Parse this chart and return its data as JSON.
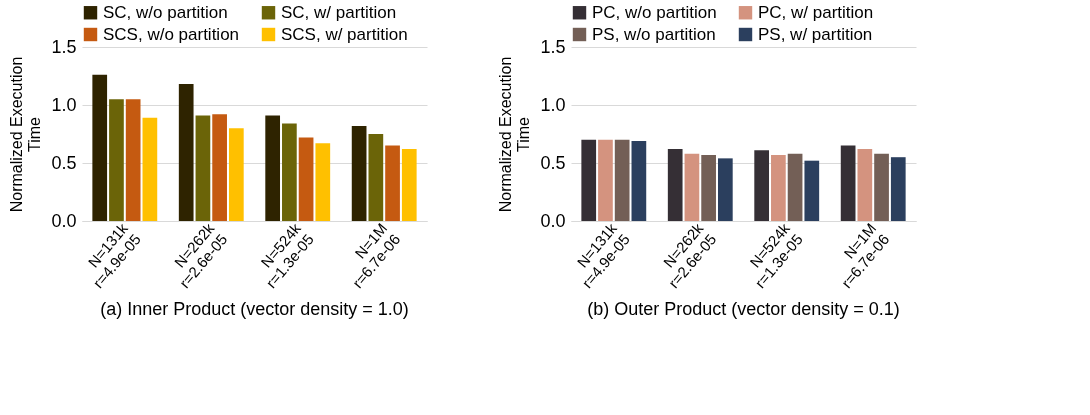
{
  "chart_data": [
    {
      "type": "bar",
      "title": "(a) Inner Product (vector density = 1.0)",
      "ylabel": "Normalized Execution Time",
      "categories": [
        "N=131k\nr=4.9e-05",
        "N=262k\nr=2.6e-05",
        "N=524k\nr=1.3e-05",
        "N=1M\nr=6.7e-06"
      ],
      "series": [
        {
          "name": "SC, w/o partition",
          "color": "#2e2300",
          "values": [
            1.26,
            1.18,
            0.91,
            0.82
          ]
        },
        {
          "name": "SC, w/ partition",
          "color": "#6b6408",
          "values": [
            1.05,
            0.91,
            0.84,
            0.75
          ]
        },
        {
          "name": "SCS, w/o partition",
          "color": "#c55a11",
          "values": [
            1.05,
            0.92,
            0.72,
            0.65
          ]
        },
        {
          "name": "SCS, w/ partition",
          "color": "#ffc000",
          "values": [
            0.89,
            0.8,
            0.67,
            0.62
          ]
        }
      ],
      "ylim": [
        0,
        1.5
      ],
      "yticks": [
        {
          "value": 0,
          "label": "0.0"
        },
        {
          "value": 0.5,
          "label": "0.5"
        },
        {
          "value": 1,
          "label": "1.0"
        },
        {
          "value": 1.5,
          "label": "1.5"
        }
      ],
      "grid": "y",
      "legend": "top"
    },
    {
      "type": "bar",
      "title": "(b) Outer Product (vector density = 0.1)",
      "ylabel": "Normalized Execution Time",
      "categories": [
        "N=131k\nr=4.9e-05",
        "N=262k\nr=2.6e-05",
        "N=524k\nr=1.3e-05",
        "N=1M\nr=6.7e-06"
      ],
      "series": [
        {
          "name": "PC, w/o partition",
          "color": "#352f35",
          "values": [
            0.7,
            0.62,
            0.61,
            0.65
          ]
        },
        {
          "name": "PC, w/ partition",
          "color": "#d4937f",
          "values": [
            0.7,
            0.58,
            0.57,
            0.62
          ]
        },
        {
          "name": "PS, w/o partition",
          "color": "#735f56",
          "values": [
            0.7,
            0.57,
            0.58,
            0.58
          ]
        },
        {
          "name": "PS, w/ partition",
          "color": "#2b3f5e",
          "values": [
            0.69,
            0.54,
            0.52,
            0.55
          ]
        }
      ],
      "ylim": [
        0,
        1.5
      ],
      "yticks": [
        {
          "value": 0,
          "label": "0.0"
        },
        {
          "value": 0.5,
          "label": "0.5"
        },
        {
          "value": 1,
          "label": "1.0"
        },
        {
          "value": 1.5,
          "label": "1.5"
        }
      ],
      "grid": "y",
      "legend": "top"
    }
  ]
}
